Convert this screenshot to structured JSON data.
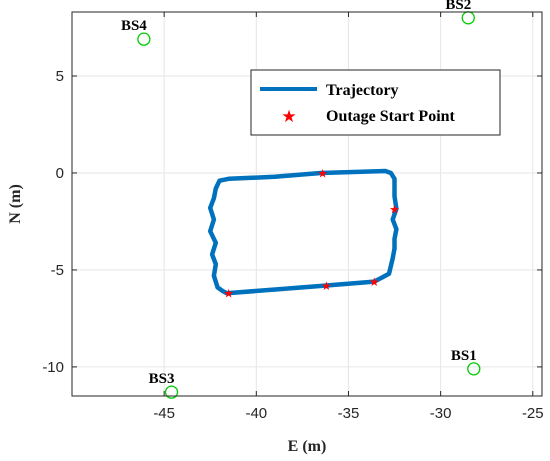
{
  "chart_data": {
    "type": "line",
    "xlabel": "E (m)",
    "ylabel": "N (m)",
    "xlim": [
      -50,
      -24.5
    ],
    "ylim": [
      -11.5,
      8.3
    ],
    "xticks": [
      -45,
      -40,
      -35,
      -30,
      -25
    ],
    "yticks": [
      -10,
      -5,
      0,
      5
    ],
    "grid": true,
    "legend_position": "top-right",
    "colors": {
      "trajectory": "#0072BD",
      "outage": "#FF0000",
      "base_station": "#00CC00",
      "grid": "#E6E6E6",
      "axis": "#262626"
    },
    "series": [
      {
        "name": "Trajectory",
        "style": "line",
        "x": [
          -36.5,
          -33.0,
          -32.7,
          -32.5,
          -32.5,
          -32.5,
          -32.4,
          -32.6,
          -32.4,
          -32.5,
          -32.5,
          -32.6,
          -32.8,
          -33.6,
          -36.2,
          -38.8,
          -41.6,
          -41.8,
          -42.1,
          -42.3,
          -42.2,
          -42.4,
          -42.2,
          -42.5,
          -42.3,
          -42.5,
          -42.3,
          -42.2,
          -42.0,
          -41.5,
          -39.0,
          -36.5
        ],
        "y": [
          0.0,
          0.1,
          0.0,
          -0.3,
          -0.8,
          -1.2,
          -1.85,
          -2.4,
          -2.9,
          -3.4,
          -3.9,
          -4.4,
          -5.2,
          -5.6,
          -5.8,
          -6.0,
          -6.2,
          -6.1,
          -5.9,
          -5.3,
          -4.7,
          -4.2,
          -3.6,
          -3.0,
          -2.4,
          -1.8,
          -1.3,
          -0.8,
          -0.4,
          -0.3,
          -0.2,
          0.0
        ]
      },
      {
        "name": "Outage Start Point",
        "style": "star",
        "x": [
          -36.4,
          -32.5,
          -33.6,
          -36.2,
          -41.5
        ],
        "y": [
          0.0,
          -1.85,
          -5.6,
          -5.8,
          -6.2
        ]
      }
    ],
    "base_stations": [
      {
        "label": "BS1",
        "x": -28.2,
        "y": -10.1
      },
      {
        "label": "BS2",
        "x": -28.5,
        "y": 8.0
      },
      {
        "label": "BS3",
        "x": -44.6,
        "y": -11.3
      },
      {
        "label": "BS4",
        "x": -46.1,
        "y": 6.9
      }
    ]
  }
}
